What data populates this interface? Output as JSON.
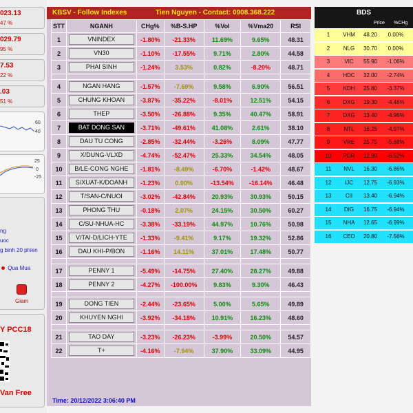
{
  "left_panel": {
    "items": [
      {
        "value": "023.13",
        "pct": "47 %"
      },
      {
        "value": "029.79",
        "pct": "95 %"
      },
      {
        "value": "7.53",
        "pct": "22 %"
      },
      {
        "value": ".03",
        "pct": "51 %"
      }
    ],
    "chart1_ticks": [
      "60",
      "40"
    ],
    "chart2_ticks": [
      "25",
      "0",
      "-25"
    ],
    "status_lines": [
      "ng",
      "uoc",
      "g binh 20 phien"
    ],
    "qua_mua": "Qua Mua",
    "giam": "Giam",
    "pcc_label": "Y PCC18",
    "footer_name": "Van Free"
  },
  "header": {
    "title": "KBSV - Follow Indexes",
    "contact": "Tien Nguyen - Contact: 0908.368.222"
  },
  "columns": [
    "STT",
    "NGANH",
    "CHg%",
    "%B-S.HP",
    "%Vol",
    "%Vma20",
    "RSI"
  ],
  "rows": [
    {
      "stt": "1",
      "name": "VNINDEX",
      "chg": "-1.80%",
      "bs": "-21.33%",
      "vol": "11.69%",
      "vma": "9.65%",
      "rsi": "48.31"
    },
    {
      "stt": "2",
      "name": "VN30",
      "chg": "-1.10%",
      "bs": "-17.55%",
      "vol": "9.71%",
      "vma": "2.80%",
      "rsi": "44.58"
    },
    {
      "stt": "3",
      "name": "PHAI SINH",
      "chg": "-1.24%",
      "bs": "3.53%",
      "vol": "0.82%",
      "vma": "-8.20%",
      "rsi": "48.71"
    },
    {
      "gap": true
    },
    {
      "stt": "4",
      "name": "NGAN HANG",
      "chg": "-1.57%",
      "bs": "-7.69%",
      "vol": "9.58%",
      "vma": "6.90%",
      "rsi": "56.51"
    },
    {
      "stt": "5",
      "name": "CHUNG KHOAN",
      "chg": "-3.87%",
      "bs": "-35.22%",
      "vol": "-8.01%",
      "vma": "12.51%",
      "rsi": "54.15"
    },
    {
      "stt": "6",
      "name": "THEP",
      "chg": "-3.50%",
      "bs": "-26.88%",
      "vol": "9.35%",
      "vma": "40.47%",
      "rsi": "58.91"
    },
    {
      "stt": "7",
      "name": "BAT DONG SAN",
      "chg": "-3.71%",
      "bs": "-49.61%",
      "vol": "41.08%",
      "vma": "2.61%",
      "rsi": "38.10",
      "selected": true
    },
    {
      "stt": "8",
      "name": "DAU TU CONG",
      "chg": "-2.85%",
      "bs": "-32.44%",
      "vol": "-3.26%",
      "vma": "8.09%",
      "rsi": "47.77"
    },
    {
      "stt": "9",
      "name": "X/DUNG-VLXD",
      "chg": "-4.74%",
      "bs": "-52.47%",
      "vol": "25.33%",
      "vma": "34.54%",
      "rsi": "48.05"
    },
    {
      "stt": "10",
      "name": "B/LE-CONG NGHE",
      "chg": "-1.81%",
      "bs": "-8.49%",
      "vol": "-6.70%",
      "vma": "-1.42%",
      "rsi": "48.67"
    },
    {
      "stt": "11",
      "name": "S/XUAT-K/DOANH",
      "chg": "-1.23%",
      "bs": "0.00%",
      "vol": "-13.54%",
      "vma": "-16.14%",
      "rsi": "46.48"
    },
    {
      "stt": "12",
      "name": "T/SAN-C/NUOI",
      "chg": "-3.02%",
      "bs": "-42.84%",
      "vol": "20.93%",
      "vma": "30.93%",
      "rsi": "50.15"
    },
    {
      "stt": "13",
      "name": "PHONG THU",
      "chg": "-0.18%",
      "bs": "2.07%",
      "vol": "24.15%",
      "vma": "30.50%",
      "rsi": "60.27"
    },
    {
      "stt": "14",
      "name": "C/SU-NHUA-HC",
      "chg": "-3.38%",
      "bs": "-33.19%",
      "vol": "44.97%",
      "vma": "10.76%",
      "rsi": "50.98"
    },
    {
      "stt": "15",
      "name": "V/TAI-D/LICH-YTE",
      "chg": "-1.33%",
      "bs": "-9.41%",
      "vol": "9.17%",
      "vma": "19.32%",
      "rsi": "52.86"
    },
    {
      "stt": "16",
      "name": "DAU KHI-P/BON",
      "chg": "-1.16%",
      "bs": "14.11%",
      "vol": "37.01%",
      "vma": "17.48%",
      "rsi": "50.77"
    },
    {
      "gap": true
    },
    {
      "stt": "17",
      "name": "PENNY 1",
      "chg": "-5.49%",
      "bs": "-14.75%",
      "vol": "27.40%",
      "vma": "28.27%",
      "rsi": "49.88"
    },
    {
      "stt": "18",
      "name": "PENNY 2",
      "chg": "-4.27%",
      "bs": "-100.00%",
      "vol": "9.83%",
      "vma": "9.30%",
      "rsi": "46.43"
    },
    {
      "gap": true
    },
    {
      "stt": "19",
      "name": "DONG TIEN",
      "chg": "-2.44%",
      "bs": "-23.65%",
      "vol": "5.00%",
      "vma": "5.65%",
      "rsi": "49.89"
    },
    {
      "stt": "20",
      "name": "KHUYEN NGHI",
      "chg": "-3.92%",
      "bs": "-34.18%",
      "vol": "10.91%",
      "vma": "16.23%",
      "rsi": "48.60"
    },
    {
      "gap": true
    },
    {
      "stt": "21",
      "name": "TAO DAY",
      "chg": "-3.23%",
      "bs": "-26.23%",
      "vol": "-3.99%",
      "vma": "20.50%",
      "rsi": "54.57"
    },
    {
      "stt": "22",
      "name": "T+",
      "chg": "-4.16%",
      "bs": "-7.94%",
      "vol": "37.90%",
      "vma": "33.09%",
      "rsi": "44.95"
    }
  ],
  "time_label": "Time: 20/12/2022 3:06:40 PM",
  "right_panel": {
    "title": "BDS",
    "sub_price": "Price",
    "sub_chg": "%CHg",
    "rows": [
      {
        "n": "1",
        "sym": "VHM",
        "price": "48.20",
        "chg": "0.00%",
        "bg": "#ffff99"
      },
      {
        "n": "2",
        "sym": "NLG",
        "price": "30.70",
        "chg": "0.00%",
        "bg": "#ffff99"
      },
      {
        "n": "3",
        "sym": "VIC",
        "price": "55.90",
        "chg": "-1.06%",
        "bg": "#ff7a7a"
      },
      {
        "n": "4",
        "sym": "HDC",
        "price": "32.00",
        "chg": "-2.74%",
        "bg": "#ff6a6a"
      },
      {
        "n": "5",
        "sym": "KDH",
        "price": "25.80",
        "chg": "-3.37%",
        "bg": "#ff3b3b"
      },
      {
        "n": "6",
        "sym": "DXG",
        "price": "19.30",
        "chg": "-4.46%",
        "bg": "#ff2a2a"
      },
      {
        "n": "7",
        "sym": "DXG",
        "price": "13.40",
        "chg": "-4.96%",
        "bg": "#ff2424"
      },
      {
        "n": "8",
        "sym": "NTL",
        "price": "16.25",
        "chg": "-4.97%",
        "bg": "#ff2020"
      },
      {
        "n": "9",
        "sym": "VRE",
        "price": "25.75",
        "chg": "-5.68%",
        "bg": "#ff1616"
      },
      {
        "n": "10",
        "sym": "PDR",
        "price": "12.90",
        "chg": "-6.52%",
        "bg": "#ff0000"
      },
      {
        "n": "11",
        "sym": "NVL",
        "price": "16.30",
        "chg": "-6.86%",
        "bg": "#22e0ff"
      },
      {
        "n": "12",
        "sym": "IJC",
        "price": "12.75",
        "chg": "-6.93%",
        "bg": "#22e0ff"
      },
      {
        "n": "13",
        "sym": "CII",
        "price": "13.40",
        "chg": "-6.94%",
        "bg": "#22e0ff"
      },
      {
        "n": "14",
        "sym": "DIG",
        "price": "16.75",
        "chg": "-6.94%",
        "bg": "#22e0ff"
      },
      {
        "n": "15",
        "sym": "NHA",
        "price": "12.65",
        "chg": "-6.99%",
        "bg": "#22e0ff"
      },
      {
        "n": "16",
        "sym": "CEO",
        "price": "20.80",
        "chg": "-7.56%",
        "bg": "#22e0ff"
      }
    ]
  }
}
